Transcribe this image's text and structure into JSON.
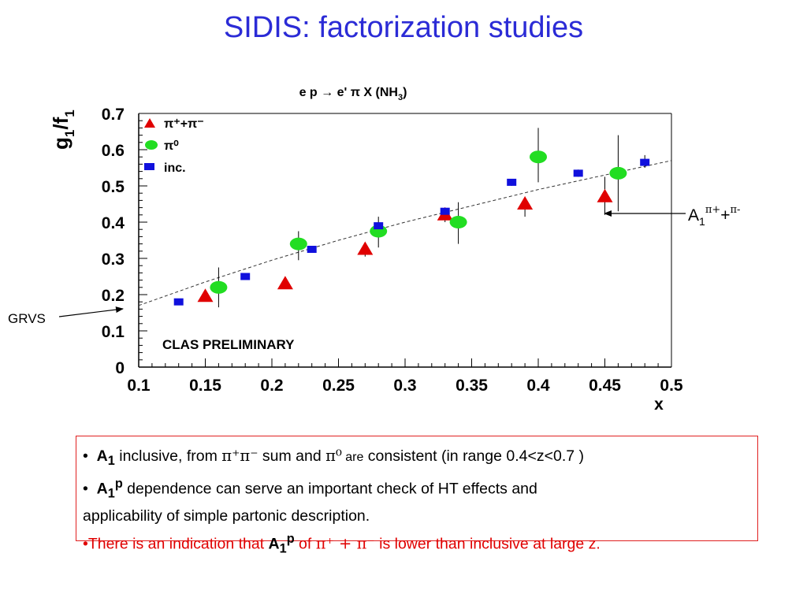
{
  "slide_title": "SIDIS: factorization studies",
  "chart_data": {
    "type": "scatter",
    "title": "e p → e' π X (NH",
    "title_sub": "3",
    "title_end": ")",
    "ylabel": "g",
    "ylabel_sub1": "1",
    "ylabel_mid": "/f",
    "ylabel_sub2": "1",
    "xlabel": "x",
    "xlim": [
      0.1,
      0.5
    ],
    "ylim": [
      0,
      0.7
    ],
    "x_ticks": [
      "0.1",
      "0.15",
      "0.2",
      "0.25",
      "0.3",
      "0.35",
      "0.4",
      "0.45",
      "0.5"
    ],
    "y_ticks": [
      "0",
      "0.1",
      "0.2",
      "0.3",
      "0.4",
      "0.5",
      "0.6",
      "0.7"
    ],
    "grid": false,
    "legend_position": "top-left",
    "watermark": "CLAS PRELIMINARY",
    "series": [
      {
        "name": "π+ + π-",
        "legend_label": "π⁺+π⁻",
        "marker": "triangle",
        "color": "#e00000",
        "x": [
          0.15,
          0.21,
          0.27,
          0.33,
          0.39,
          0.45
        ],
        "y": [
          0.195,
          0.23,
          0.325,
          0.42,
          0.45,
          0.47
        ],
        "y_low": [
          0.195,
          0.23,
          0.305,
          0.4,
          0.415,
          0.42
        ],
        "y_high": [
          0.195,
          0.23,
          0.335,
          0.435,
          0.47,
          0.525
        ]
      },
      {
        "name": "π0",
        "legend_label": "π⁰",
        "marker": "ellipse",
        "color": "#22dd22",
        "x": [
          0.16,
          0.22,
          0.28,
          0.34,
          0.4,
          0.46
        ],
        "y": [
          0.22,
          0.34,
          0.375,
          0.4,
          0.58,
          0.535
        ],
        "y_low": [
          0.165,
          0.295,
          0.33,
          0.34,
          0.51,
          0.43
        ],
        "y_high": [
          0.275,
          0.375,
          0.415,
          0.455,
          0.66,
          0.64
        ]
      },
      {
        "name": "inc.",
        "legend_label": "inc.",
        "marker": "square",
        "color": "#1010dd",
        "x": [
          0.13,
          0.18,
          0.23,
          0.28,
          0.33,
          0.38,
          0.43,
          0.48
        ],
        "y": [
          0.18,
          0.25,
          0.325,
          0.39,
          0.43,
          0.51,
          0.535,
          0.565
        ],
        "y_low": [
          0.18,
          0.25,
          0.325,
          0.38,
          0.42,
          0.5,
          0.525,
          0.55
        ],
        "y_high": [
          0.18,
          0.25,
          0.325,
          0.4,
          0.44,
          0.515,
          0.545,
          0.585
        ]
      }
    ],
    "curve": {
      "name": "GRVS",
      "style": "dashed",
      "x": [
        0.1,
        0.15,
        0.2,
        0.25,
        0.3,
        0.35,
        0.4,
        0.45,
        0.5
      ],
      "y": [
        0.17,
        0.235,
        0.295,
        0.35,
        0.4,
        0.445,
        0.49,
        0.53,
        0.57
      ]
    }
  },
  "annotations": {
    "grvs_label": "GRVS",
    "a1_label_main": "A",
    "a1_label_sub": "1",
    "a1_label_sup1": "π+",
    "a1_label_plus": "+",
    "a1_label_sup2": "π-"
  },
  "notes": {
    "line1": {
      "bullet": "•",
      "a": "A",
      "a_sub": "1",
      "t1": " inclusive, from ",
      "pp": "π⁺π⁻",
      "t2": "  sum and ",
      "p0": "π⁰",
      "t3": " are",
      "t4": " consistent (in range 0.4<z<0.7 )"
    },
    "line2": {
      "bullet": "•",
      "a": "A",
      "a_sub": "1",
      "a_sup": "p",
      "t1": "  dependence can serve an important check of HT effects and"
    },
    "line3": {
      "t1": "applicability of simple partonic description."
    },
    "line4": {
      "t1": "•There is an indication that  ",
      "a": "A",
      "a_sub": "1",
      "a_sup": "p",
      "t2": "  of ",
      "pp": "π⁺ + π⁻",
      "t3": " is lower than inclusive at large z."
    }
  }
}
